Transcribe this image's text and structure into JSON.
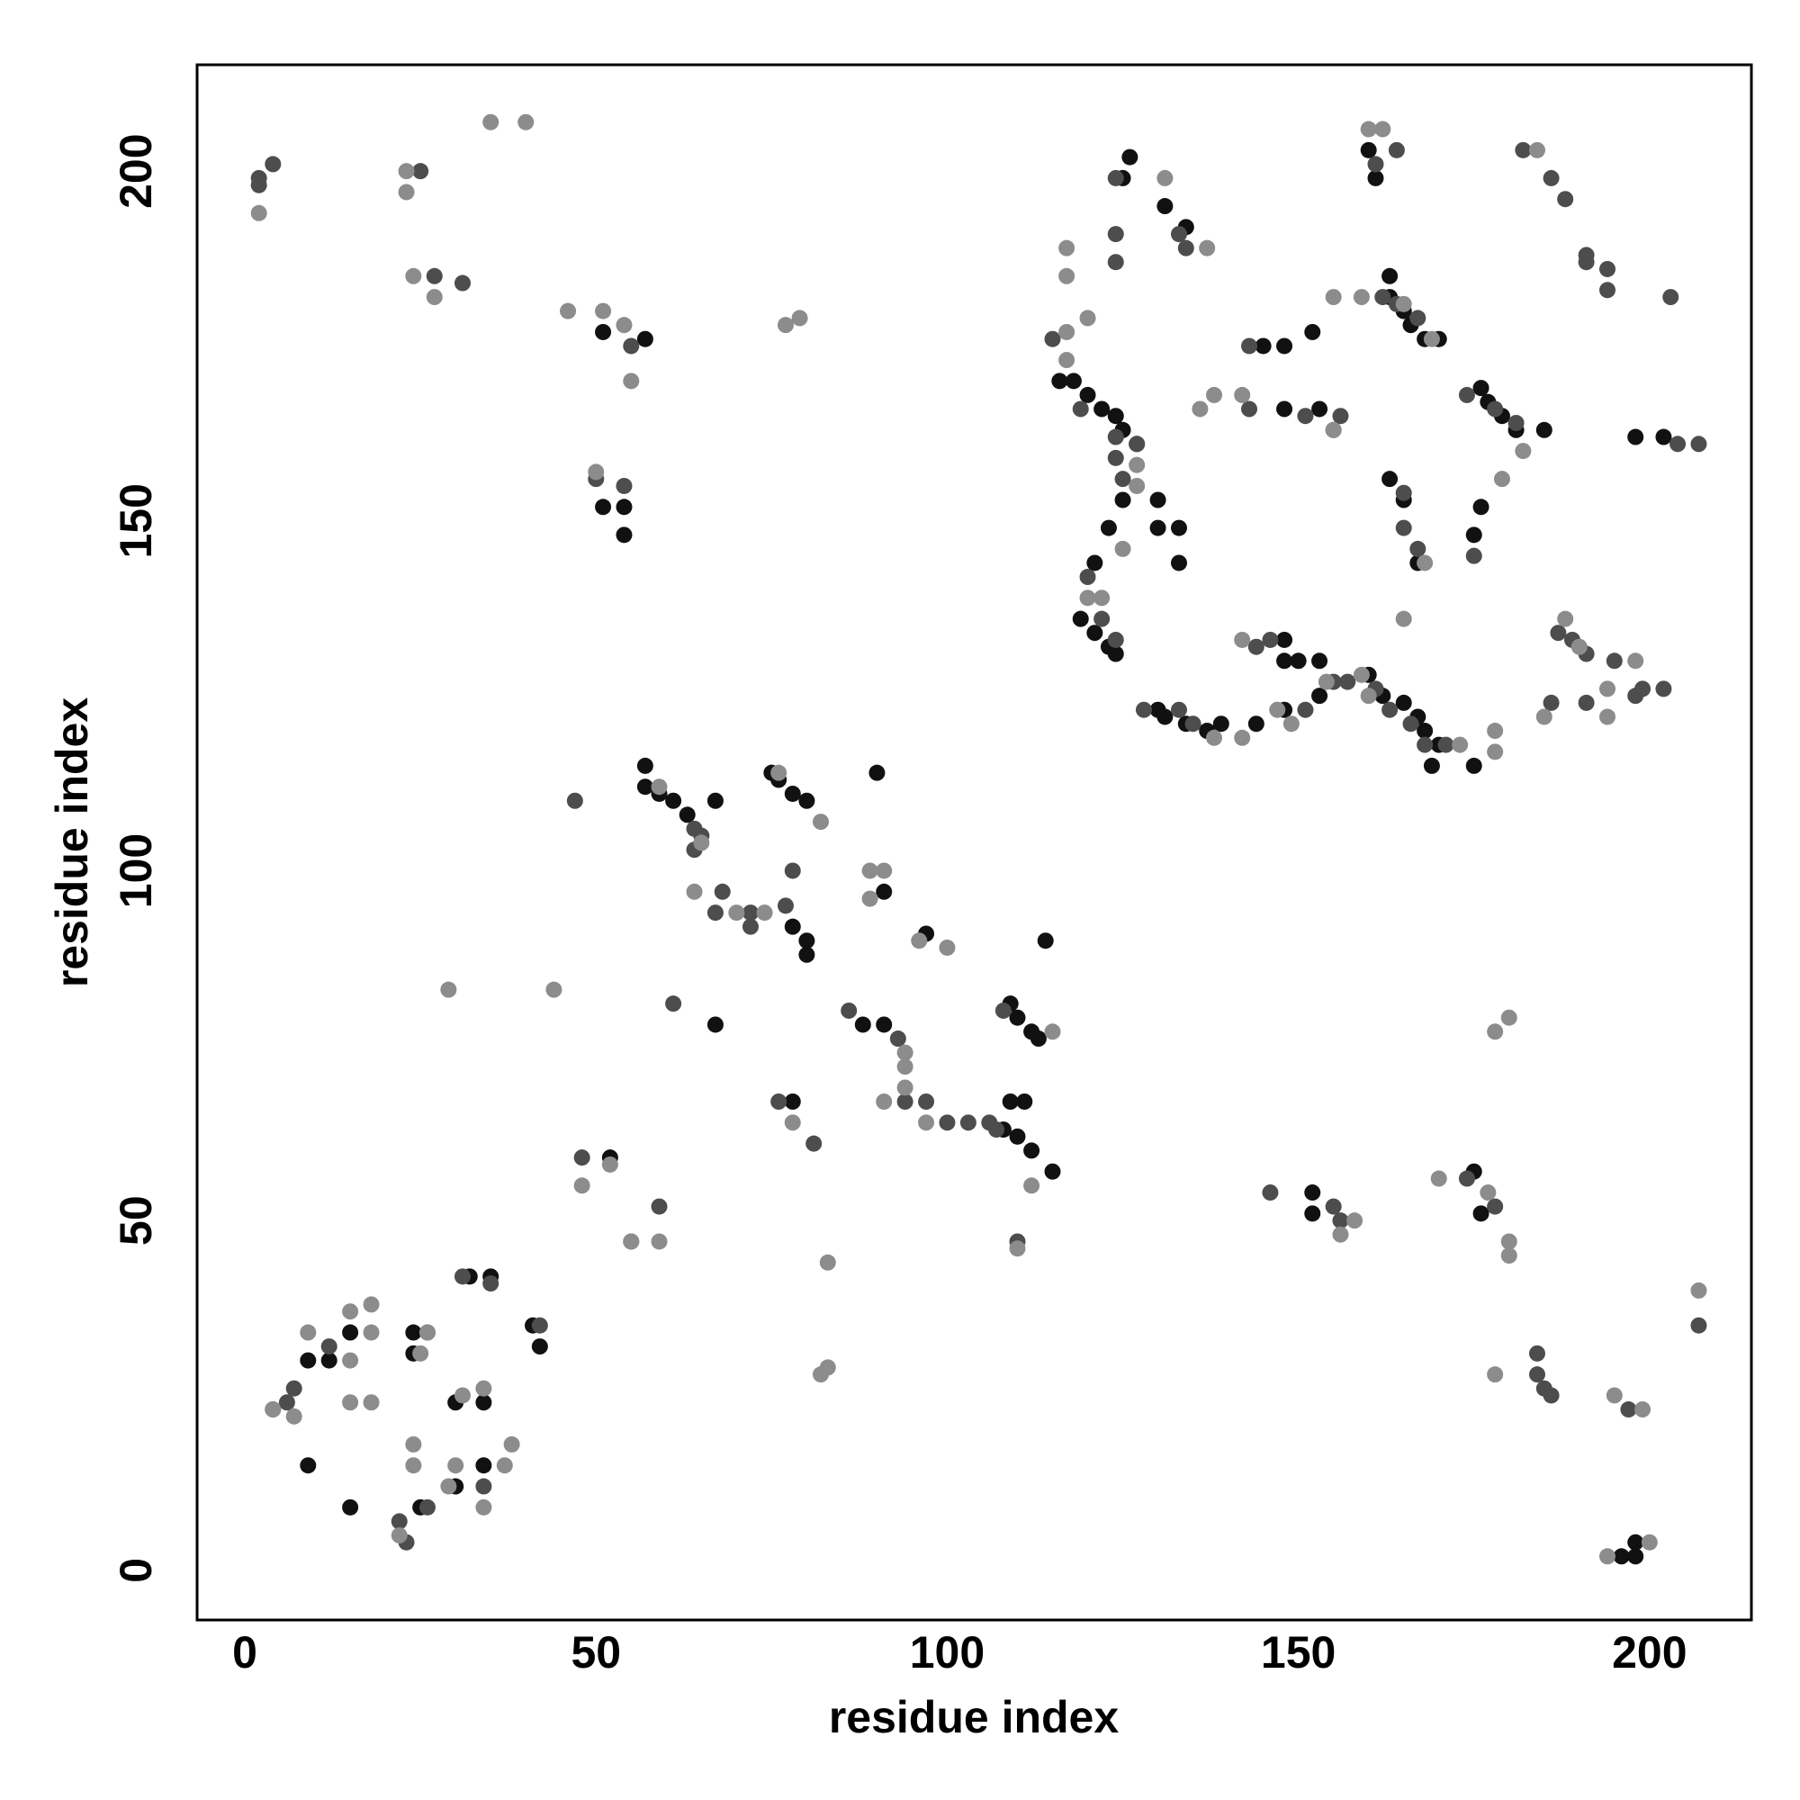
{
  "chart_data": {
    "type": "scatter",
    "xlabel": "residue index",
    "ylabel": "residue index",
    "xlim": [
      -6.8,
      214.5
    ],
    "ylim": [
      -7.1,
      215.2
    ],
    "xticks": [
      0,
      50,
      100,
      150,
      200
    ],
    "yticks": [
      0,
      50,
      100,
      150,
      200
    ],
    "grid": false,
    "series": [
      {
        "color": "#111111",
        "x": [
          51,
          57,
          51,
          54,
          54,
          57,
          57,
          59,
          61,
          63,
          67,
          75,
          76,
          78,
          80,
          90,
          78,
          80,
          80,
          97,
          114,
          91,
          88,
          91,
          67,
          78,
          109,
          110,
          112,
          113,
          111,
          109,
          108,
          110,
          112,
          115,
          52,
          24,
          24,
          15,
          12,
          9,
          9,
          15,
          30,
          34,
          34,
          30,
          25,
          32,
          35,
          41,
          42,
          116,
          118,
          120,
          122,
          124,
          125,
          127,
          125,
          123,
          121,
          119,
          121,
          123,
          124,
          130,
          130,
          133,
          133,
          130,
          131,
          134,
          137,
          139,
          144,
          148,
          148,
          150,
          148,
          153,
          153,
          160,
          162,
          165,
          167,
          168,
          170,
          169,
          175,
          175,
          176,
          163,
          165,
          167,
          176,
          177,
          179,
          181,
          185,
          198,
          202,
          163,
          163,
          165,
          166,
          168,
          170,
          161,
          160,
          152,
          148,
          145,
          153,
          148,
          126,
          131,
          125,
          134,
          176,
          175,
          152,
          152,
          196,
          198,
          198
        ],
        "y": [
          177,
          176,
          152,
          152,
          148,
          115,
          112,
          111,
          110,
          108,
          110,
          114,
          113,
          111,
          110,
          114,
          92,
          90,
          88,
          91,
          90,
          97,
          78,
          78,
          78,
          67,
          81,
          79,
          77,
          76,
          67,
          67,
          63,
          62,
          60,
          57,
          59,
          34,
          31,
          34,
          30,
          30,
          15,
          9,
          24,
          24,
          15,
          12,
          9,
          42,
          42,
          35,
          32,
          170,
          170,
          168,
          166,
          165,
          163,
          161,
          153,
          149,
          144,
          136,
          134,
          132,
          131,
          153,
          149,
          149,
          144,
          123,
          122,
          121,
          120,
          121,
          121,
          133,
          130,
          130,
          123,
          130,
          125,
          128,
          125,
          124,
          122,
          120,
          118,
          115,
          115,
          148,
          152,
          156,
          153,
          144,
          169,
          167,
          165,
          163,
          163,
          162,
          162,
          185,
          182,
          180,
          178,
          176,
          176,
          199,
          203,
          177,
          175,
          175,
          166,
          166,
          202,
          195,
          199,
          192,
          51,
          57,
          51,
          54,
          2,
          2,
          4
        ]
      },
      {
        "color": "#4d4d4d",
        "x": [
          2,
          2,
          4,
          25,
          27,
          31,
          50,
          54,
          55,
          47,
          64,
          65,
          64,
          68,
          67,
          72,
          72,
          77,
          78,
          76,
          81,
          86,
          93,
          94,
          97,
          100,
          103,
          106,
          107,
          110,
          108,
          61,
          59,
          55,
          48,
          31,
          26,
          12,
          7,
          6,
          4,
          22,
          23,
          26,
          34,
          35,
          42,
          115,
          119,
          124,
          127,
          124,
          125,
          120,
          122,
          124,
          128,
          133,
          135,
          144,
          146,
          151,
          155,
          157,
          161,
          163,
          166,
          168,
          171,
          187,
          189,
          191,
          195,
          199,
          202,
          186,
          191,
          198,
          162,
          164,
          167,
          164,
          161,
          143,
          143,
          151,
          156,
          155,
          165,
          165,
          167,
          175,
          174,
          178,
          181,
          182,
          186,
          188,
          191,
          191,
          194,
          194,
          203,
          207,
          204,
          124,
          124,
          124,
          133,
          134,
          146,
          155,
          156,
          174,
          178,
          184,
          184,
          185,
          186,
          207,
          197
        ],
        "y": [
          199,
          198,
          201,
          200,
          185,
          184,
          156,
          155,
          175,
          110,
          106,
          105,
          103,
          97,
          94,
          94,
          92,
          95,
          100,
          67,
          61,
          80,
          76,
          67,
          67,
          64,
          64,
          64,
          63,
          47,
          80,
          81,
          52,
          47,
          59,
          42,
          34,
          32,
          26,
          24,
          23,
          7,
          4,
          9,
          12,
          41,
          35,
          176,
          166,
          162,
          161,
          159,
          156,
          142,
          136,
          133,
          123,
          123,
          121,
          132,
          133,
          123,
          127,
          127,
          126,
          123,
          121,
          118,
          118,
          134,
          133,
          131,
          130,
          126,
          126,
          124,
          124,
          125,
          182,
          181,
          179,
          203,
          201,
          175,
          166,
          165,
          165,
          163,
          154,
          149,
          146,
          145,
          168,
          166,
          164,
          203,
          199,
          196,
          188,
          187,
          183,
          186,
          182,
          161,
          161,
          199,
          187,
          191,
          191,
          189,
          54,
          52,
          50,
          56,
          52,
          31,
          28,
          26,
          25,
          35,
          23
        ]
      },
      {
        "color": "#8c8c8c",
        "x": [
          2,
          23,
          23,
          24,
          27,
          46,
          51,
          54,
          55,
          50,
          59,
          65,
          64,
          70,
          74,
          76,
          82,
          89,
          91,
          89,
          96,
          100,
          94,
          94,
          94,
          91,
          78,
          97,
          115,
          112,
          110,
          44,
          29,
          55,
          59,
          48,
          52,
          77,
          79,
          83,
          83,
          82,
          9,
          18,
          15,
          18,
          15,
          15,
          18,
          25,
          26,
          24,
          24,
          30,
          31,
          34,
          38,
          37,
          34,
          29,
          22,
          4,
          7,
          117,
          120,
          117,
          120,
          122,
          127,
          127,
          125,
          137,
          138,
          142,
          142,
          147,
          149,
          154,
          159,
          160,
          173,
          178,
          178,
          188,
          190,
          185,
          194,
          194,
          198,
          155,
          159,
          165,
          169,
          168,
          165,
          182,
          179,
          184,
          162,
          160,
          138,
          142,
          136,
          178,
          180,
          180,
          177,
          170,
          158,
          156,
          195,
          194,
          199,
          200,
          207,
          180,
          178,
          40,
          35,
          117,
          117,
          155,
          131
        ],
        "y": [
          194,
          200,
          197,
          185,
          182,
          180,
          180,
          178,
          170,
          157,
          112,
          104,
          97,
          94,
          94,
          114,
          107,
          100,
          100,
          96,
          90,
          89,
          74,
          72,
          69,
          67,
          64,
          64,
          77,
          55,
          46,
          83,
          83,
          47,
          47,
          55,
          58,
          178,
          179,
          44,
          29,
          28,
          34,
          34,
          37,
          38,
          30,
          24,
          24,
          31,
          34,
          18,
          15,
          15,
          25,
          26,
          18,
          15,
          9,
          12,
          5,
          23,
          22,
          173,
          179,
          177,
          139,
          139,
          158,
          155,
          146,
          189,
          119,
          119,
          133,
          123,
          121,
          127,
          128,
          125,
          118,
          120,
          117,
          136,
          132,
          122,
          122,
          126,
          130,
          182,
          182,
          181,
          176,
          144,
          136,
          160,
          156,
          203,
          206,
          206,
          168,
          168,
          166,
          28,
          45,
          47,
          54,
          56,
          50,
          48,
          25,
          2,
          23,
          4,
          40,
          79,
          77,
          207,
          207,
          189,
          185,
          163,
          199
        ]
      }
    ]
  }
}
